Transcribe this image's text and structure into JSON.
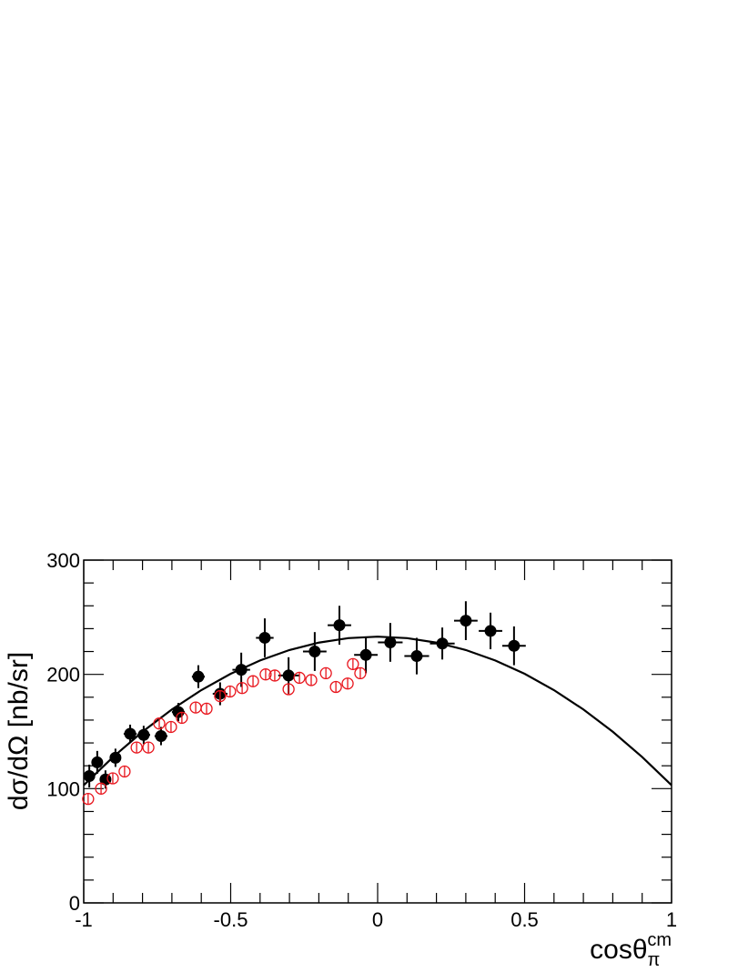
{
  "chart_data": {
    "type": "errorbar",
    "y_label": "dσ/dΩ [nb/sr]",
    "x_label": {
      "text": "cosθ",
      "sub": "π",
      "sup": "cm"
    },
    "xlim": [
      -1,
      1
    ],
    "xticks": [
      -1,
      -0.5,
      0,
      0.5,
      1
    ],
    "xminorticks": [
      -0.9,
      -0.8,
      -0.7,
      -0.6,
      -0.4,
      -0.3,
      -0.2,
      -0.1,
      0.1,
      0.2,
      0.3,
      0.4,
      0.6,
      0.7,
      0.8,
      0.9
    ],
    "ylim": [
      0,
      300
    ],
    "yticks": [
      0,
      100,
      200,
      300
    ],
    "yminorticks": [
      20,
      40,
      60,
      80,
      120,
      140,
      160,
      180,
      220,
      240,
      260,
      280
    ],
    "series": [
      {
        "color": "#000000",
        "marker": "filled",
        "x": [
          -0.981,
          -0.954,
          -0.926,
          -0.892,
          -0.842,
          -0.796,
          -0.737,
          -0.678,
          -0.61,
          -0.536,
          -0.464,
          -0.384,
          -0.303,
          -0.214,
          -0.13,
          -0.04,
          0.043,
          0.133,
          0.22,
          0.3,
          0.384,
          0.464
        ],
        "values": [
          111,
          123,
          108,
          127,
          148,
          147,
          146,
          167,
          198,
          183,
          204,
          232,
          199,
          220,
          243,
          217,
          228,
          216,
          227,
          247,
          238,
          225
        ],
        "xerr": [
          0.01,
          0.01,
          0.012,
          0.015,
          0.022,
          0.022,
          0.022,
          0.022,
          0.022,
          0.025,
          0.03,
          0.03,
          0.035,
          0.04,
          0.04,
          0.04,
          0.042,
          0.042,
          0.042,
          0.04,
          0.04,
          0.04
        ],
        "yerr": [
          10,
          10,
          8,
          8,
          8,
          8,
          8,
          8,
          10,
          10,
          15,
          17,
          16,
          17,
          17,
          16,
          17,
          16,
          14,
          17,
          16,
          17
        ]
      },
      {
        "color": "#e8141c",
        "marker": "open",
        "x": [
          -0.985,
          -0.941,
          -0.901,
          -0.861,
          -0.82,
          -0.78,
          -0.743,
          -0.703,
          -0.666,
          -0.619,
          -0.582,
          -0.536,
          -0.502,
          -0.461,
          -0.424,
          -0.381,
          -0.35,
          -0.303,
          -0.266,
          -0.226,
          -0.176,
          -0.142,
          -0.102,
          -0.084,
          -0.059
        ],
        "values": [
          91,
          100,
          109,
          115,
          136,
          136,
          157,
          154,
          162,
          171,
          170,
          181,
          185,
          188,
          194,
          200,
          199,
          187,
          197,
          195,
          201,
          189,
          192,
          209,
          201
        ],
        "yerr": [
          5,
          5,
          5,
          5,
          5,
          5,
          5,
          5,
          5,
          5,
          5,
          5,
          5,
          5,
          5,
          5,
          5,
          5,
          5,
          5,
          5,
          5,
          5,
          5,
          5
        ]
      }
    ],
    "curve": {
      "color": "#000000",
      "x": [
        -1,
        -0.9,
        -0.8,
        -0.7,
        -0.6,
        -0.5,
        -0.4,
        -0.3,
        -0.2,
        -0.1,
        0,
        0.1,
        0.2,
        0.3,
        0.4,
        0.5,
        0.6,
        0.7,
        0.8,
        0.9,
        1
      ],
      "values": [
        103,
        127.7,
        149.8,
        169.3,
        186.2,
        200.5,
        212.2,
        221.3,
        227.8,
        231.7,
        233,
        231.7,
        227.8,
        221.3,
        212.2,
        200.5,
        186.2,
        169.3,
        149.8,
        127.7,
        103
      ]
    }
  }
}
